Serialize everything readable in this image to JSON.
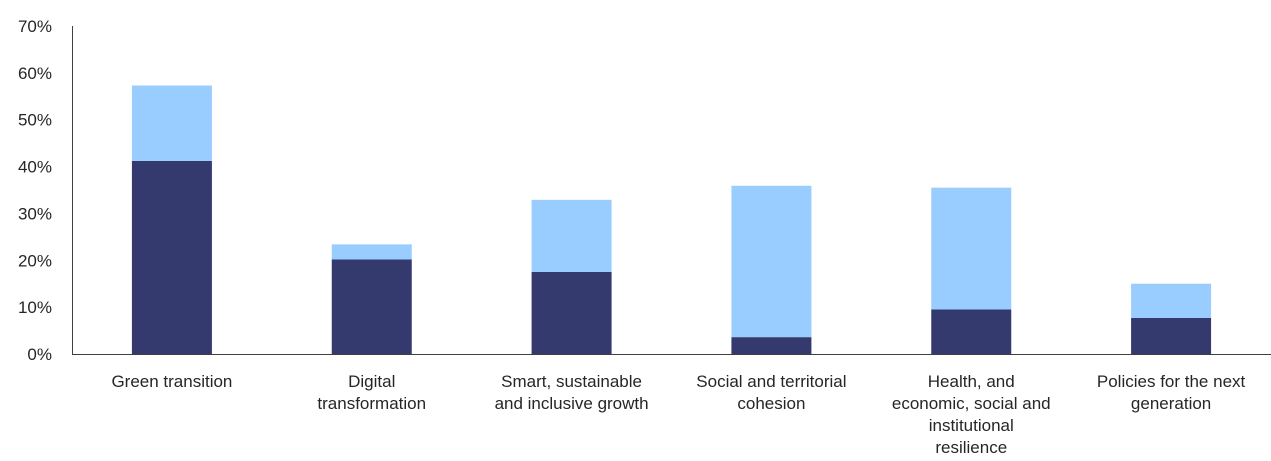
{
  "chart_data": {
    "type": "bar",
    "stacked": true,
    "categories": [
      "Green transition",
      "Digital transformation",
      "Smart, sustainable and inclusive growth",
      "Social and territorial cohesion",
      "Health, and economic, social and institutional resilience",
      "Policies for the next generation"
    ],
    "category_lines": [
      [
        "Green transition"
      ],
      [
        "Digital",
        "transformation"
      ],
      [
        "Smart, sustainable",
        "and inclusive growth"
      ],
      [
        "Social and territorial",
        "cohesion"
      ],
      [
        "Health, and",
        "economic, social and",
        "institutional",
        "resilience"
      ],
      [
        "Policies for the next",
        "generation"
      ]
    ],
    "series": [
      {
        "values": [
          41.2,
          20.2,
          17.5,
          3.6,
          9.5,
          7.7
        ],
        "color": "#343a6e"
      },
      {
        "values": [
          16.1,
          3.2,
          15.4,
          32.3,
          26.0,
          7.3
        ],
        "color": "#99ccff"
      }
    ],
    "ylim": [
      0,
      70
    ],
    "yticks": [
      "0%",
      "10%",
      "20%",
      "30%",
      "40%",
      "50%",
      "60%",
      "70%"
    ],
    "ytick_values": [
      0,
      10,
      20,
      30,
      40,
      50,
      60,
      70
    ],
    "legend": "none",
    "grid": false
  }
}
